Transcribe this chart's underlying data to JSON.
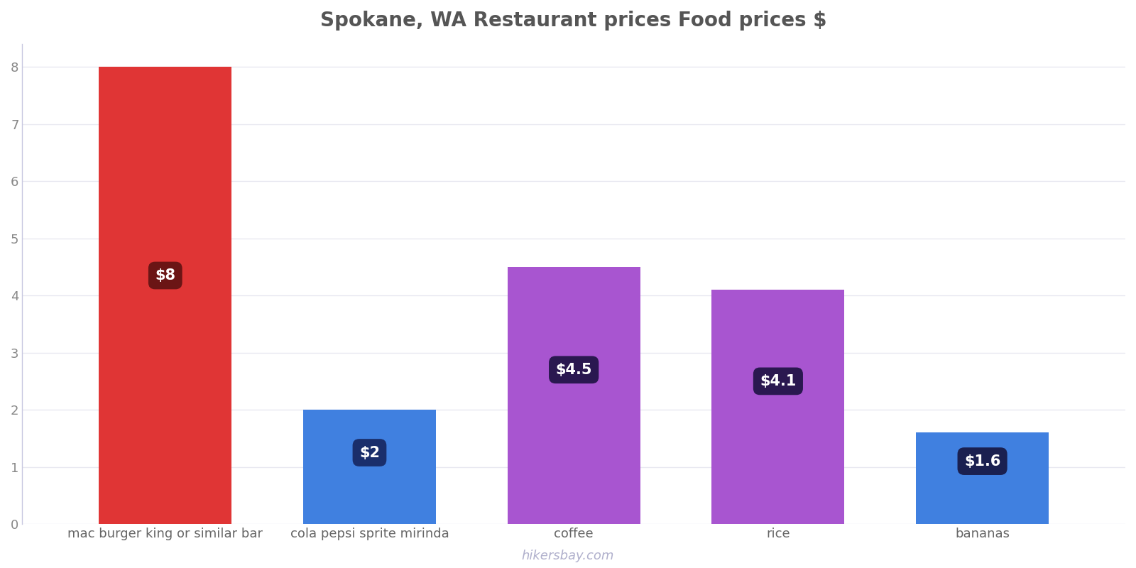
{
  "title": "Spokane, WA Restaurant prices Food prices $",
  "categories": [
    "mac burger king or similar bar",
    "cola pepsi sprite mirinda",
    "coffee",
    "rice",
    "bananas"
  ],
  "values": [
    8.0,
    2.0,
    4.5,
    4.1,
    1.6
  ],
  "bar_colors": [
    "#e03535",
    "#4080e0",
    "#a855d0",
    "#a855d0",
    "#4080e0"
  ],
  "label_texts": [
    "$8",
    "$2",
    "$4.5",
    "$4.1",
    "$1.6"
  ],
  "label_bg_colors": [
    "#6b1515",
    "#1a2e6b",
    "#2a1850",
    "#2a1850",
    "#1a2050"
  ],
  "label_y_abs": [
    4.35,
    1.25,
    2.7,
    2.5,
    1.1
  ],
  "ylim": [
    0,
    8.4
  ],
  "yticks": [
    0,
    1,
    2,
    3,
    4,
    5,
    6,
    7,
    8
  ],
  "title_fontsize": 20,
  "tick_fontsize": 13,
  "label_fontsize": 15,
  "watermark": "hikersbay.com",
  "background_color": "#ffffff",
  "grid_color": "#e8e8f0",
  "left_spine_color": "#c8c8e0",
  "bar_width": 0.65
}
